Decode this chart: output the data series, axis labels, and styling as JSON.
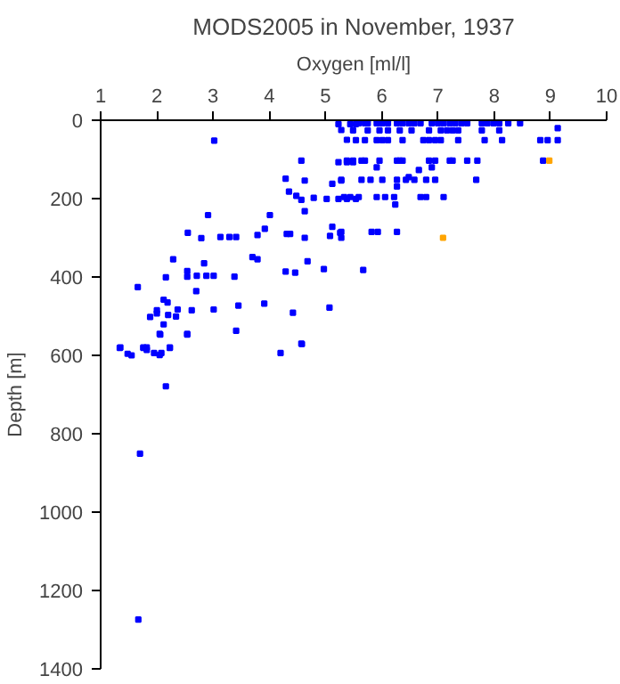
{
  "chart_data": {
    "type": "scatter",
    "title": "MODS2005 in November, 1937",
    "xlabel": "Oxygen [ml/l]",
    "ylabel": "Depth [m]",
    "xlim": [
      1,
      10
    ],
    "ylim": [
      1400,
      0
    ],
    "xticks": [
      1,
      2,
      3,
      4,
      5,
      6,
      7,
      8,
      9,
      10
    ],
    "yticks": [
      0,
      200,
      400,
      600,
      800,
      1000,
      1200,
      1400
    ],
    "grid": false,
    "marker": "square",
    "series": [
      {
        "color": "#0000ff",
        "x": [
          5.59,
          5.7,
          5.75,
          5.91,
          6.01,
          6.11,
          6.27,
          6.37,
          6.48,
          6.58,
          6.69,
          6.89,
          7.0,
          7.1,
          7.21,
          7.31,
          7.42,
          7.52,
          7.78,
          7.88,
          7.99,
          8.09,
          8.25,
          8.46,
          9.13,
          5.49,
          5.75,
          5.96,
          6.11,
          6.32,
          6.53,
          6.84,
          7.05,
          7.16,
          7.26,
          7.36,
          7.78,
          8.09,
          5.54,
          5.7,
          5.91,
          6.01,
          6.11,
          6.37,
          6.74,
          6.84,
          6.95,
          7.05,
          7.36,
          7.83,
          8.14,
          8.82,
          8.95,
          9.13,
          5.23,
          5.28,
          5.44,
          5.38,
          5.54,
          5.38,
          5.49,
          5.64,
          5.7,
          5.96,
          6.27,
          6.32,
          6.37,
          6.84,
          6.95,
          7.21,
          7.26,
          7.52,
          7.7,
          8.87,
          5.91,
          6.89,
          6.66,
          5.28,
          5.64,
          5.8,
          6.01,
          6.27,
          6.43,
          6.58,
          6.79,
          6.95,
          7.68,
          6.48,
          6.27,
          5.33,
          5.44,
          5.59,
          5.91,
          6.06,
          6.22,
          6.69,
          6.79,
          7.1,
          6.24,
          5.28,
          5.82,
          5.93,
          6.27,
          5.67,
          3.02,
          4.57,
          4.29,
          4.63,
          5.12,
          5.23,
          5.38,
          5.49,
          5.28,
          4.35,
          4.48,
          4.57,
          4.79,
          5.02,
          5.23,
          5.38,
          5.54,
          4.63,
          2.91,
          4.01,
          2.55,
          2.79,
          3.13,
          3.29,
          3.41,
          3.79,
          3.92,
          4.31,
          4.37,
          4.63,
          5.08,
          5.26,
          5.28,
          5.12,
          3.7,
          3.79,
          2.29,
          2.84,
          2.16,
          2.54,
          2.54,
          2.71,
          2.88,
          3.01,
          3.38,
          4.29,
          4.46,
          4.68,
          4.97,
          1.66,
          2.7,
          2.12,
          2.19,
          2.37,
          2.0,
          2.0,
          1.88,
          2.2,
          2.34,
          2.62,
          3.01,
          3.45,
          3.91,
          4.42,
          5.07,
          2.12,
          2.06,
          2.54,
          3.41,
          1.35,
          1.76,
          1.82,
          2.23,
          4.57,
          1.34,
          1.48,
          1.55,
          1.76,
          1.82,
          1.95,
          2.05,
          2.08,
          2.23,
          2.05,
          2.54,
          4.2,
          4.58,
          2.16,
          1.7,
          1.67
        ],
        "values": [
          8,
          8,
          8,
          8,
          8,
          8,
          8,
          8,
          8,
          8,
          8,
          8,
          8,
          8,
          8,
          8,
          8,
          8,
          8,
          8,
          8,
          8,
          8,
          8,
          20,
          26,
          26,
          26,
          26,
          26,
          26,
          26,
          26,
          26,
          26,
          26,
          26,
          26,
          51,
          51,
          51,
          51,
          51,
          51,
          51,
          51,
          51,
          51,
          51,
          51,
          51,
          51,
          51,
          51,
          10,
          25,
          10,
          50,
          10,
          103,
          103,
          103,
          103,
          103,
          103,
          103,
          103,
          103,
          103,
          103,
          103,
          103,
          103,
          103,
          120,
          120,
          127,
          152,
          152,
          152,
          152,
          152,
          152,
          152,
          152,
          152,
          152,
          145,
          169,
          196,
          196,
          196,
          196,
          196,
          196,
          196,
          196,
          196,
          215,
          285,
          285,
          285,
          285,
          382,
          52,
          103,
          149,
          154,
          162,
          107,
          107,
          107,
          154,
          182,
          193,
          203,
          198,
          201,
          201,
          201,
          201,
          232,
          242,
          242,
          287,
          301,
          298,
          298,
          298,
          293,
          277,
          290,
          290,
          300,
          295,
          287,
          300,
          272,
          349,
          355,
          355,
          365,
          401,
          385,
          399,
          397,
          397,
          397,
          399,
          386,
          389,
          360,
          380,
          426,
          436,
          458,
          465,
          483,
          485,
          493,
          502,
          497,
          501,
          485,
          483,
          473,
          468,
          491,
          478,
          521,
          547,
          547,
          537,
          580,
          580,
          580,
          580,
          570,
          581,
          596,
          600,
          581,
          586,
          594,
          599,
          594,
          581,
          545,
          545,
          594,
          571,
          679,
          851,
          1274
        ]
      },
      {
        "color": "#ffa500",
        "x": [
          8.98,
          7.09
        ],
        "values": [
          103,
          300
        ]
      }
    ]
  }
}
